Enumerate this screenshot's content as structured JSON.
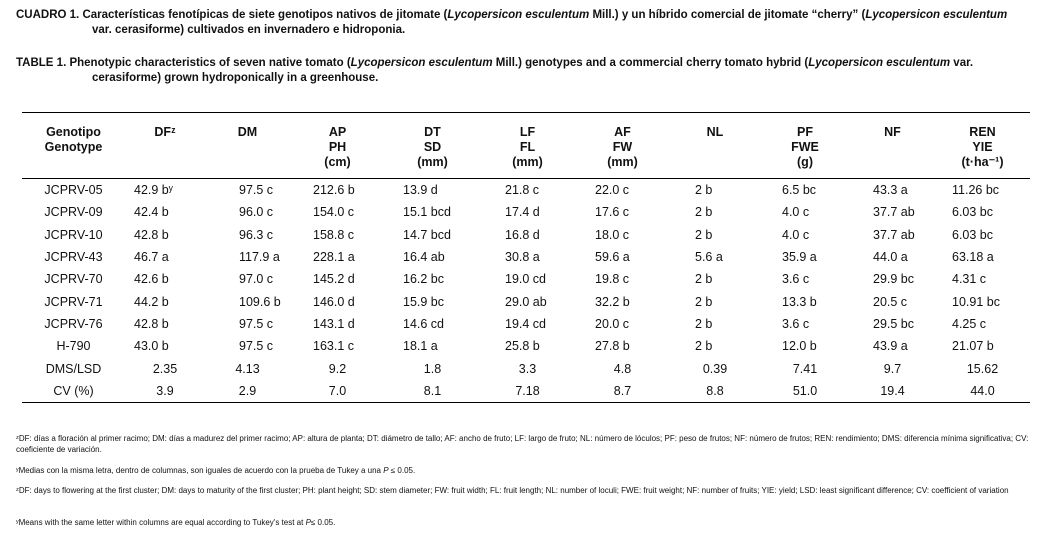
{
  "captions": [
    [
      "CUADRO 1. Características fenotípicas de siete genotipos nativos de jitomate (",
      "Lycopersicon esculentum",
      " Mill.) y un híbrido comercial de jitomate “cherry” (",
      "Lycopersicon esculentum",
      " var. cerasiforme) cultivados en invernadero e hidroponia."
    ],
    [
      "TABLE 1. Phenotypic characteristics of seven native tomato (",
      "Lycopersicon esculentum",
      " Mill.) genotypes and a commercial cherry tomato hybrid (",
      "Lycopersicon esculentum",
      " var. cerasiforme) grown hydroponically in a greenhouse."
    ]
  ],
  "table": {
    "header": [
      [
        "Genotipo",
        "Genotype"
      ],
      [
        "DFᶻ"
      ],
      [
        "DM"
      ],
      [
        "AP",
        "PH",
        "(cm)"
      ],
      [
        "DT",
        "SD",
        "(mm)"
      ],
      [
        "LF",
        "FL",
        "(mm)"
      ],
      [
        "AF",
        "FW",
        "(mm)"
      ],
      [
        "NL"
      ],
      [
        "PF",
        "FWE",
        "(g)"
      ],
      [
        "NF"
      ],
      [
        "REN",
        "YIE",
        "(t·ha⁻¹)"
      ]
    ],
    "rows": [
      [
        "JCPRV-05",
        "42.9 bʸ",
        "97.5 c",
        "212.6 b",
        "13.9 d",
        "21.8 c",
        "22.0 c",
        "2 b",
        "6.5 bc",
        "43.3 a",
        "11.26 bc"
      ],
      [
        "JCPRV-09",
        "42.4 b",
        "96.0 c",
        "154.0 c",
        "15.1 bcd",
        "17.4 d",
        "17.6 c",
        "2 b",
        "4.0 c",
        "37.7 ab",
        "6.03 bc"
      ],
      [
        "JCPRV-10",
        "42.8 b",
        "96.3 c",
        "158.8 c",
        "14.7 bcd",
        "16.8 d",
        "18.0 c",
        "2 b",
        "4.0 c",
        "37.7 ab",
        "6.03 bc"
      ],
      [
        "JCPRV-43",
        "46.7 a",
        "117.9 a",
        "228.1 a",
        "16.4 ab",
        "30.8 a",
        "59.6 a",
        "5.6 a",
        "35.9 a",
        "44.0 a",
        "63.18 a"
      ],
      [
        "JCPRV-70",
        "42.6 b",
        "97.0 c",
        "145.2 d",
        "16.2 bc",
        "19.0 cd",
        "19.8 c",
        "2 b",
        "3.6 c",
        "29.9 bc",
        "4.31 c"
      ],
      [
        "JCPRV-71",
        "44.2 b",
        "109.6 b",
        "146.0 d",
        "15.9 bc",
        "29.0 ab",
        "32.2 b",
        "2 b",
        "13.3 b",
        "20.5 c",
        "10.91 bc"
      ],
      [
        "JCPRV-76",
        "42.8 b",
        "97.5 c",
        "143.1 d",
        "14.6 cd",
        "19.4 cd",
        "20.0 c",
        "2 b",
        "3.6 c",
        "29.5 bc",
        "4.25 c"
      ],
      [
        "H-790",
        "43.0 b",
        "97.5 c",
        "163.1 c",
        "18.1 a",
        "25.8 b",
        "27.8 b",
        "2 b",
        "12.0 b",
        "43.9 a",
        "21.07 b"
      ],
      [
        "DMS/LSD",
        "2.35",
        "4.13",
        "9.2",
        "1.8",
        "3.3",
        "4.8",
        "0.39",
        "7.41",
        "9.7",
        "15.62"
      ],
      [
        "CV (%)",
        "3.9",
        "2.9",
        "7.0",
        "8.1",
        "7.18",
        "8.7",
        "8.8",
        "51.0",
        "19.4",
        "44.0"
      ]
    ]
  },
  "footnotes": [
    [
      "ᶻDF: días a floración al primer racimo; DM: días a madurez del primer racimo; AP: altura de planta; DT: diámetro de tallo; AF: ancho de fruto; LF: largo de fruto; NL: número de lóculos; PF: peso de frutos; NF: número de frutos; REN: rendimiento; DMS: diferencia mínima significativa; CV: coeficiente de variación."
    ],
    [
      "ʸMedias con la misma letra, dentro de columnas, son iguales de acuerdo con la prueba de Tukey a una ",
      "P",
      " ≤ 0.05."
    ],
    [
      "ᶻDF: days to flowering at the first cluster; DM: days to maturity of the first cluster; PH: plant height; SD: stem diameter; FW: fruit width; FL: fruit length; NL: number of loculi; FWE: fruit weight; NF: number of fruits; YIE: yield; LSD: least significant difference; CV: coefficient of variation"
    ],
    [
      "ʸMeans with the same letter within columns are equal according to Tukey's test at ",
      "P",
      "≤ 0.05."
    ]
  ]
}
